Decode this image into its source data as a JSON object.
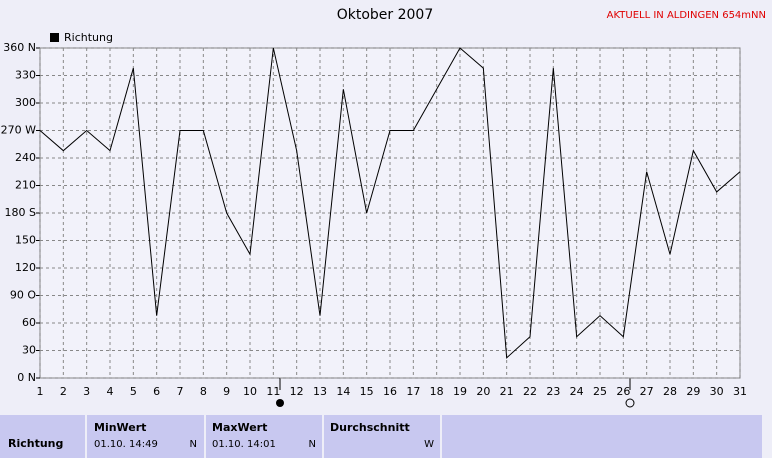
{
  "chart_data": {
    "type": "line",
    "title": "Oktober 2007",
    "subtitle": "AKTUELL IN ALDINGEN 654mNN",
    "categories": [
      "1",
      "2",
      "3",
      "4",
      "5",
      "6",
      "7",
      "8",
      "9",
      "10",
      "11",
      "12",
      "13",
      "14",
      "15",
      "16",
      "17",
      "18",
      "19",
      "20",
      "21",
      "22",
      "23",
      "24",
      "25",
      "26",
      "27",
      "28",
      "29",
      "30",
      "31"
    ],
    "series": [
      {
        "name": "Richtung",
        "color": "#000000",
        "values": [
          270,
          248,
          270,
          248,
          338,
          68,
          270,
          270,
          180,
          135,
          360,
          248,
          68,
          315,
          180,
          270,
          270,
          315,
          360,
          338,
          22,
          45,
          338,
          45,
          68,
          45,
          225,
          135,
          248,
          203,
          225
        ]
      }
    ],
    "ylim": [
      0,
      360
    ],
    "yticks": [
      {
        "value": 0,
        "label": "0  N"
      },
      30,
      60,
      {
        "value": 90,
        "label": "90  O"
      },
      120,
      150,
      {
        "value": 180,
        "label": "180 S"
      },
      210,
      240,
      {
        "value": 270,
        "label": "270 W"
      },
      300,
      330,
      {
        "value": 360,
        "label": "360 N"
      }
    ],
    "grid": true
  },
  "table": {
    "headers": [
      "MinWert",
      "MaxWert",
      "Durchschnitt"
    ],
    "rows": [
      [
        "Richtung",
        "01.10. 14:49",
        "N",
        "01.10. 14:01",
        "N",
        "W"
      ]
    ]
  }
}
